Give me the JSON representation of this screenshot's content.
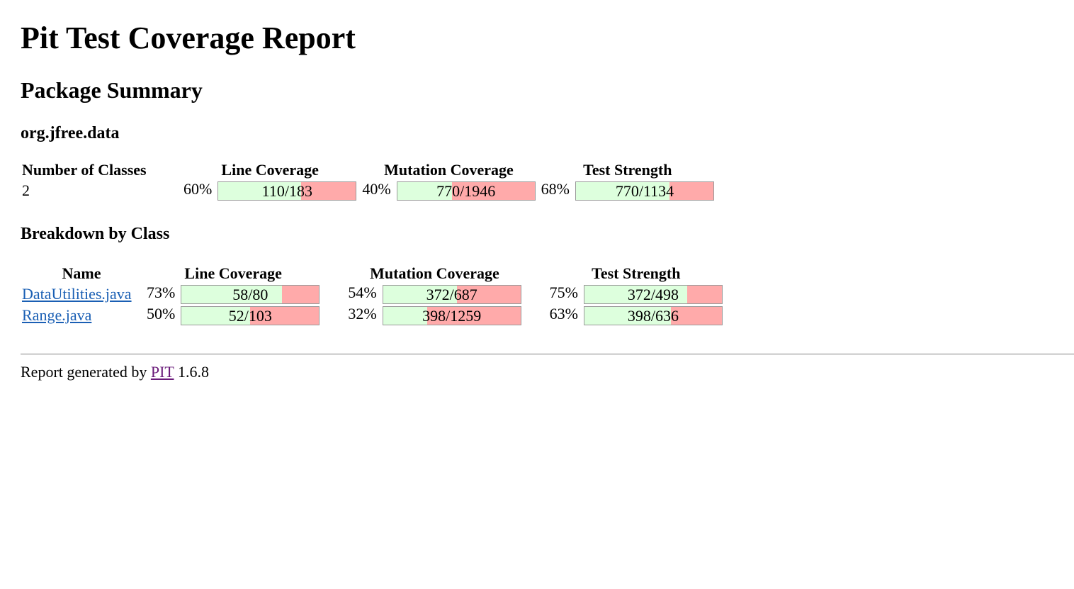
{
  "title": "Pit Test Coverage Report",
  "package_summary": {
    "heading": "Package Summary",
    "package_name": "org.jfree.data",
    "headers": {
      "classes": "Number of Classes",
      "line": "Line Coverage",
      "mutation": "Mutation Coverage",
      "strength": "Test Strength"
    },
    "classes": "2",
    "line": {
      "pct": "60%",
      "text": "110/183",
      "fraction": 0.6
    },
    "mutation": {
      "pct": "40%",
      "text": "770/1946",
      "fraction": 0.4
    },
    "strength": {
      "pct": "68%",
      "text": "770/1134",
      "fraction": 0.68
    }
  },
  "breakdown": {
    "heading": "Breakdown by Class",
    "headers": {
      "name": "Name",
      "line": "Line Coverage",
      "mutation": "Mutation Coverage",
      "strength": "Test Strength"
    },
    "rows": [
      {
        "name": "DataUtilities.java",
        "line": {
          "pct": "73%",
          "text": "58/80",
          "fraction": 0.73
        },
        "mutation": {
          "pct": "54%",
          "text": "372/687",
          "fraction": 0.54
        },
        "strength": {
          "pct": "75%",
          "text": "372/498",
          "fraction": 0.75
        }
      },
      {
        "name": "Range.java",
        "line": {
          "pct": "50%",
          "text": "52/103",
          "fraction": 0.5
        },
        "mutation": {
          "pct": "32%",
          "text": "398/1259",
          "fraction": 0.32
        },
        "strength": {
          "pct": "63%",
          "text": "398/636",
          "fraction": 0.63
        }
      }
    ]
  },
  "footer": {
    "prefix": "Report generated by",
    "link": "PIT",
    "version": "1.6.8"
  },
  "colors": {
    "covered": "#ddffdd",
    "uncovered": "#ffaaaa",
    "link": "#1a5fb4",
    "visited_link": "#6a1b7a"
  }
}
